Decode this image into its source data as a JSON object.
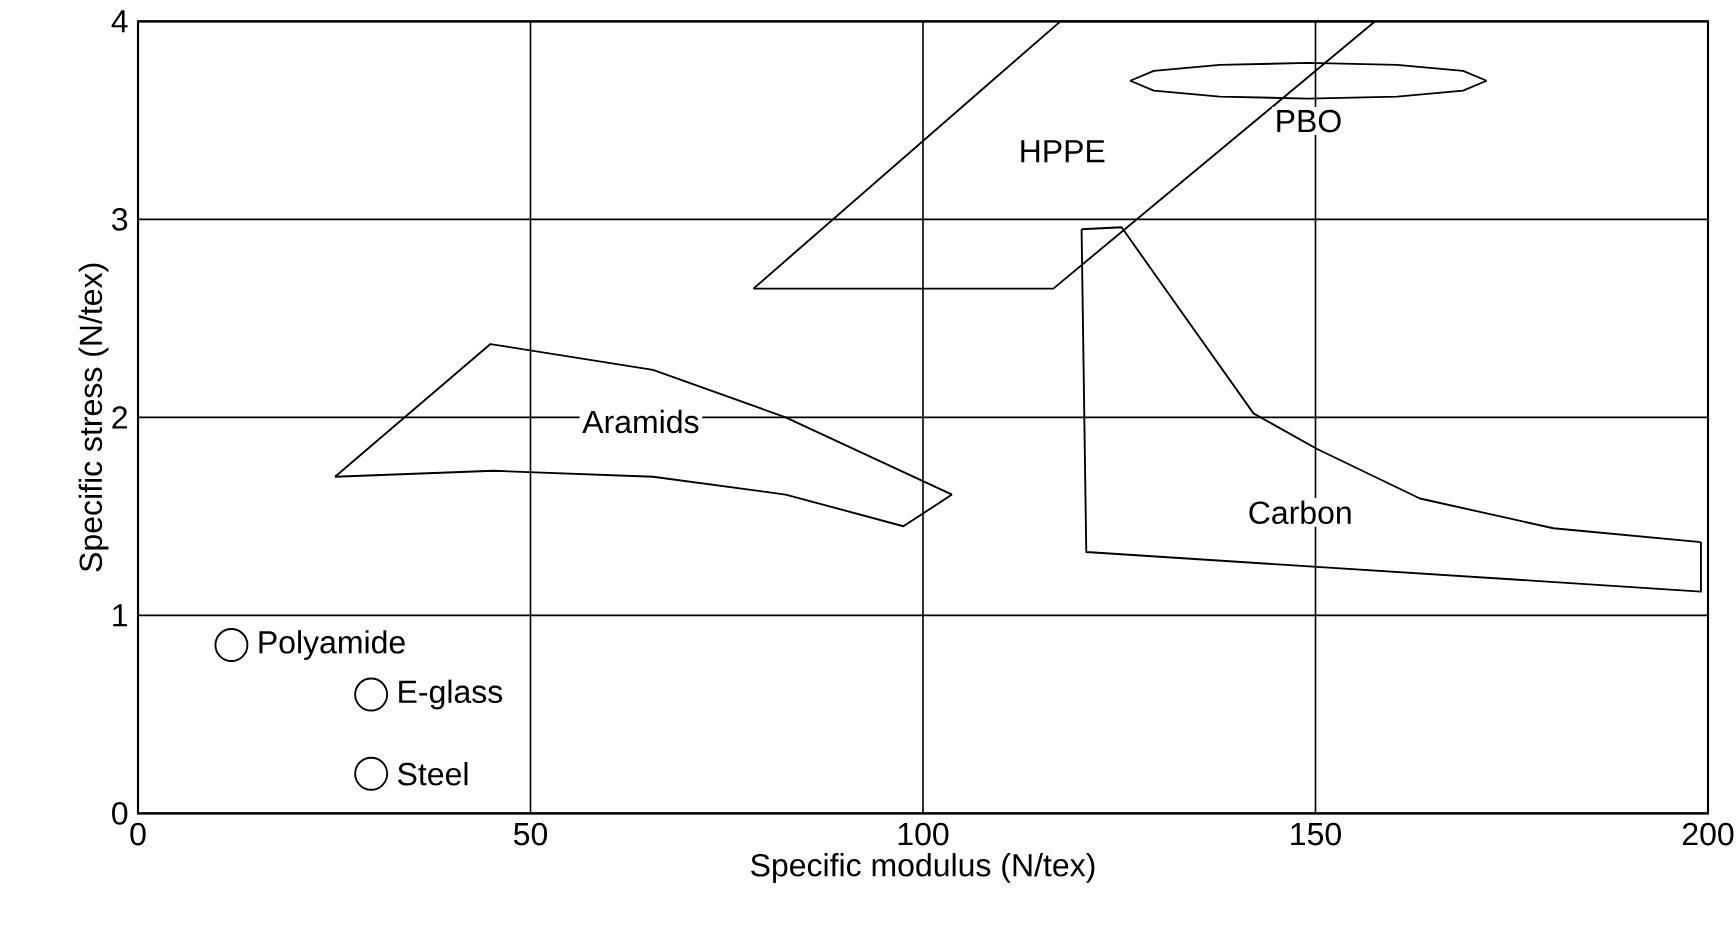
{
  "chart_data": {
    "type": "line",
    "xlabel": "Specific modulus (N/tex)",
    "ylabel": "Specific stress (N/tex)",
    "xlim": [
      0,
      200
    ],
    "ylim": [
      0,
      4
    ],
    "xticks": [
      0,
      50,
      100,
      150,
      {
        "value": 200,
        "label": "200"
      }
    ],
    "yticks": [
      0,
      1,
      2,
      3,
      4
    ],
    "grid": true,
    "marker": "none",
    "line_style": "solid",
    "series": [
      {
        "name": "Aramids",
        "color": "#000000",
        "x": [
          25.1,
          45.3,
          65.6,
          82.5,
          97.5,
          103.7
        ],
        "values": [
          1.7,
          1.73,
          1.7,
          1.61,
          1.45,
          1.61
        ]
      },
      {
        "color": "#000000",
        "x": [
          25.1,
          44.9,
          65.6,
          82.5,
          103.7
        ],
        "values": [
          1.7,
          2.37,
          2.24,
          2.0,
          1.61
        ]
      },
      {
        "name": "HPPE",
        "color": "#000000",
        "x": [
          78.4,
          117.5,
          157.6
        ],
        "values": [
          2.65,
          4,
          4
        ]
      },
      {
        "color": "#000000",
        "x": [
          78.4,
          116.6,
          157.6
        ],
        "values": [
          2.65,
          2.65,
          4
        ]
      },
      {
        "name": "PBO",
        "color": "#000000",
        "x": [
          126.4,
          129.4,
          137.8,
          149.1,
          160.4,
          168.8,
          171.8
        ],
        "values": [
          3.7,
          3.65,
          3.62,
          3.61,
          3.62,
          3.65,
          3.7
        ]
      },
      {
        "color": "#000000",
        "x": [
          126.4,
          129.4,
          137.8,
          149.1,
          160.4,
          168.8,
          171.8
        ],
        "values": [
          3.7,
          3.75,
          3.78,
          3.79,
          3.78,
          3.75,
          3.7
        ]
      },
      {
        "name": "Carbon",
        "color": "#000000",
        "x": [
          120.2,
          120.8,
          199.1,
          199.1
        ],
        "values": [
          2.95,
          1.32,
          1.12,
          1.37
        ]
      },
      {
        "color": "#000000",
        "x": [
          120.2,
          125.3,
          131.9,
          142.1,
          150.2,
          163.3,
          180.3,
          199.1
        ],
        "values": [
          2.95,
          2.96,
          2.59,
          2.02,
          1.84,
          1.59,
          1.44,
          1.37
        ]
      },
      {
        "name": "Polyamide",
        "type": "scatter",
        "color": "#000000",
        "marker": "circle",
        "x": [
          11.9
        ],
        "values": [
          0.85
        ]
      },
      {
        "name": "E-glass",
        "type": "scatter",
        "color": "#000000",
        "marker": "circle",
        "x": [
          29.7
        ],
        "values": [
          0.6
        ]
      },
      {
        "name": "Steel",
        "type": "scatter",
        "color": "#000000",
        "marker": "circle",
        "x": [
          29.7
        ],
        "values": [
          0.2
        ]
      }
    ]
  }
}
